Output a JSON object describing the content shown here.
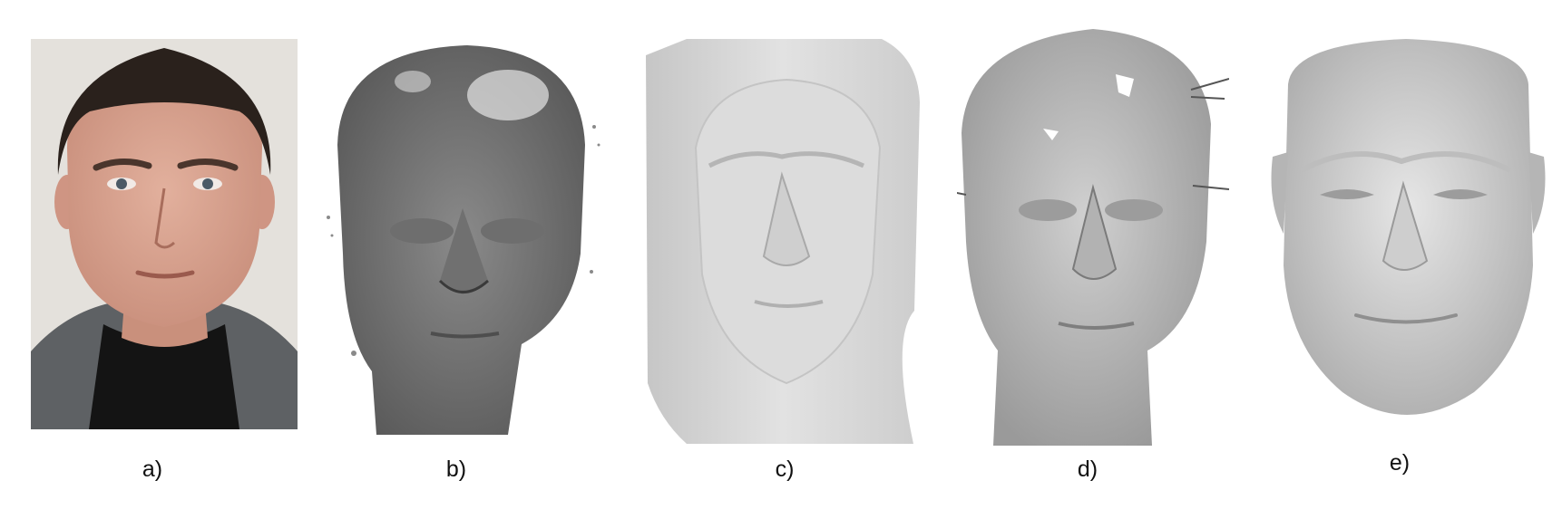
{
  "figure": {
    "captions": [
      "a)",
      "b)",
      "c)",
      "d)",
      "e)"
    ]
  },
  "panels": [
    {
      "id": "a",
      "content": "photograph"
    },
    {
      "id": "b",
      "content": "noisy-depth-scan"
    },
    {
      "id": "c",
      "content": "coarse-smooth-mesh"
    },
    {
      "id": "d",
      "content": "detailed-noisy-mesh"
    },
    {
      "id": "e",
      "content": "clean-reconstruction"
    }
  ],
  "colors": {
    "background": "#ffffff",
    "photo_wall": "#e4e1dc",
    "skin": "#d9a592",
    "hair": "#2a211c",
    "jacket": "#5e6164",
    "shirt": "#141414",
    "scan_gray": "#7a7a7a",
    "mesh_light": "#d6d6d6",
    "mesh_detail": "#b8b8b8",
    "mesh_clean": "#cfcfcf"
  }
}
